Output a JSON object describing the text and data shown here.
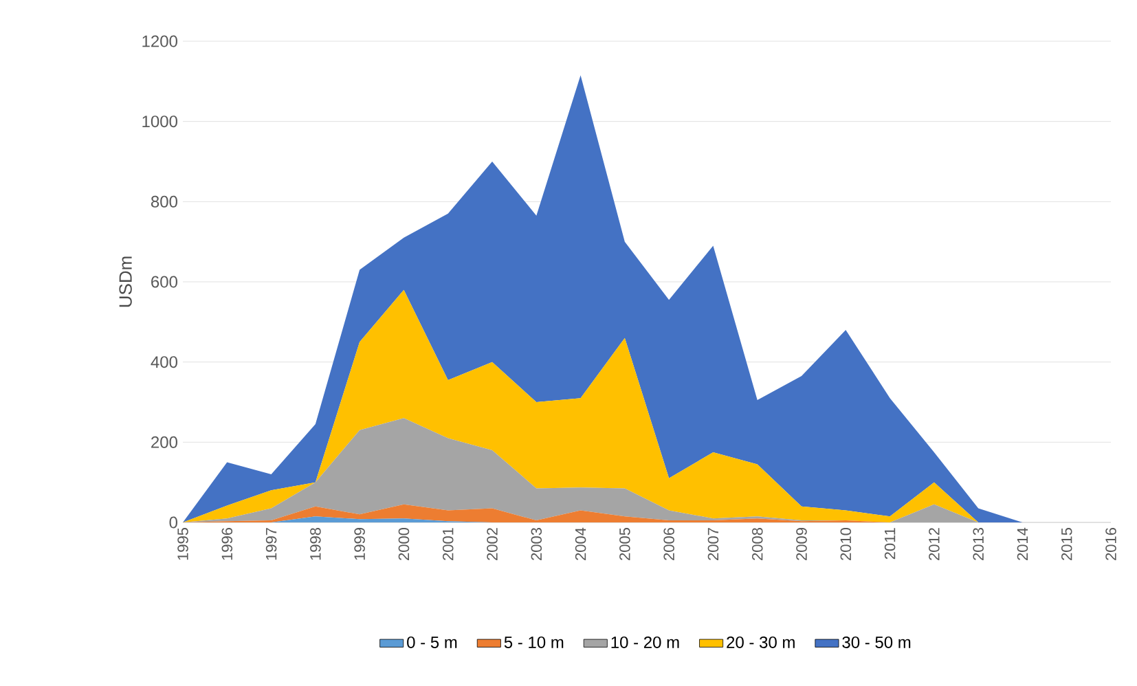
{
  "chart_data": {
    "type": "area",
    "stacked": true,
    "ylabel": "USDm",
    "categories": [
      "1995",
      "1996",
      "1997",
      "1998",
      "1999",
      "2000",
      "2001",
      "2002",
      "2003",
      "2004",
      "2005",
      "2006",
      "2007",
      "2008",
      "2009",
      "2010",
      "2011",
      "2012",
      "2013",
      "2014",
      "2015",
      "2016"
    ],
    "series": [
      {
        "name": "0 - 5 m",
        "color": "#5b9bd5",
        "values": [
          0,
          0,
          0,
          15,
          8,
          10,
          3,
          0,
          0,
          0,
          0,
          0,
          0,
          0,
          0,
          0,
          0,
          0,
          0,
          0,
          null,
          null
        ]
      },
      {
        "name": "5 - 10 m",
        "color": "#ed7d31",
        "values": [
          0,
          3,
          5,
          25,
          12,
          35,
          27,
          35,
          5,
          30,
          15,
          5,
          5,
          10,
          3,
          5,
          0,
          0,
          0,
          0,
          null,
          null
        ]
      },
      {
        "name": "10 - 20 m",
        "color": "#a5a5a5",
        "values": [
          0,
          7,
          30,
          60,
          210,
          215,
          180,
          145,
          80,
          57,
          70,
          25,
          5,
          5,
          2,
          0,
          0,
          45,
          0,
          0,
          null,
          null
        ]
      },
      {
        "name": "20 - 30 m",
        "color": "#ffc000",
        "values": [
          0,
          32,
          45,
          0,
          220,
          320,
          145,
          220,
          215,
          223,
          375,
          80,
          165,
          130,
          35,
          25,
          15,
          55,
          0,
          0,
          null,
          null
        ]
      },
      {
        "name": "30 - 50 m",
        "color": "#4472c4",
        "values": [
          0,
          108,
          40,
          145,
          180,
          130,
          415,
          500,
          465,
          805,
          240,
          445,
          515,
          160,
          325,
          450,
          295,
          75,
          35,
          0,
          null,
          null
        ]
      }
    ],
    "ylim": [
      0,
      1200
    ],
    "yticks": [
      0,
      200,
      400,
      600,
      800,
      1000,
      1200
    ],
    "grid": "y",
    "legend": "bottom"
  }
}
